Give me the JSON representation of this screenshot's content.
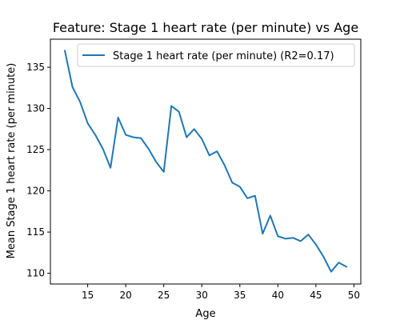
{
  "chart_data": {
    "type": "line",
    "title": "Feature: Stage 1 heart rate (per minute) vs Age",
    "xlabel": "Age",
    "ylabel": "Mean Stage 1 heart rate (per minute)",
    "xlim": [
      10.1,
      50.9
    ],
    "ylim": [
      108.7,
      138.4
    ],
    "xticks": [
      15,
      20,
      25,
      30,
      35,
      40,
      45,
      50
    ],
    "yticks": [
      110,
      115,
      120,
      125,
      130,
      135
    ],
    "grid": false,
    "legend_position": "top-right",
    "series": [
      {
        "name": "Stage 1 heart rate (per minute) (R2=0.17)",
        "color": "#1f77b4",
        "x": [
          12,
          13,
          14,
          15,
          16,
          17,
          18,
          19,
          20,
          21,
          22,
          23,
          24,
          25,
          26,
          27,
          28,
          29,
          30,
          31,
          32,
          33,
          34,
          35,
          36,
          37,
          38,
          39,
          40,
          41,
          42,
          43,
          44,
          45,
          46,
          47,
          48,
          49
        ],
        "y": [
          137.0,
          132.6,
          130.8,
          128.2,
          126.8,
          125.1,
          122.8,
          128.9,
          126.8,
          126.5,
          126.4,
          125.1,
          123.5,
          122.3,
          130.3,
          129.6,
          126.5,
          127.5,
          126.3,
          124.3,
          124.8,
          123.1,
          121.0,
          120.5,
          119.1,
          119.4,
          114.8,
          117.0,
          114.5,
          114.2,
          114.3,
          113.9,
          114.7,
          113.5,
          112.0,
          110.2,
          111.3,
          110.8
        ]
      }
    ]
  }
}
